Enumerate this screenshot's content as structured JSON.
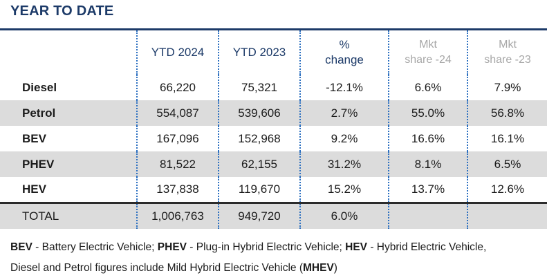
{
  "title": "YEAR TO DATE",
  "headers": {
    "ytd_2024": "YTD 2024",
    "ytd_2023": "YTD 2023",
    "change_line1": "%",
    "change_line2": "change",
    "mkt24_line1": "Mkt",
    "mkt24_line2": "share -24",
    "mkt23_line1": "Mkt",
    "mkt23_line2": "share -23"
  },
  "rows": [
    {
      "label": "Diesel",
      "ytd_2024": "66,220",
      "ytd_2023": "75,321",
      "change": "-12.1%",
      "mkt_24": "6.6%",
      "mkt_23": "7.9%"
    },
    {
      "label": "Petrol",
      "ytd_2024": "554,087",
      "ytd_2023": "539,606",
      "change": "2.7%",
      "mkt_24": "55.0%",
      "mkt_23": "56.8%"
    },
    {
      "label": "BEV",
      "ytd_2024": "167,096",
      "ytd_2023": "152,968",
      "change": "9.2%",
      "mkt_24": "16.6%",
      "mkt_23": "16.1%"
    },
    {
      "label": "PHEV",
      "ytd_2024": "81,522",
      "ytd_2023": "62,155",
      "change": "31.2%",
      "mkt_24": "8.1%",
      "mkt_23": "6.5%"
    },
    {
      "label": "HEV",
      "ytd_2024": "137,838",
      "ytd_2023": "119,670",
      "change": "15.2%",
      "mkt_24": "13.7%",
      "mkt_23": "12.6%"
    }
  ],
  "total": {
    "label": "TOTAL",
    "ytd_2024": "1,006,763",
    "ytd_2023": "949,720",
    "change": "6.0%",
    "mkt_24": "",
    "mkt_23": ""
  },
  "footnote": {
    "bev_abbr": "BEV",
    "bev_text": " - Battery Electric Vehicle; ",
    "phev_abbr": "PHEV",
    "phev_text": " - Plug-in Hybrid Electric Vehicle; ",
    "hev_abbr": "HEV",
    "hev_text": " - Hybrid Electric Vehicle,",
    "line2_text": "Diesel and Petrol figures include Mild Hybrid Electric Vehicle (",
    "mhev_abbr": "MHEV",
    "line2_close": ")"
  },
  "colors": {
    "title": "#1c3a68",
    "header": "#1c3a68",
    "muted_header": "#a7a7a7",
    "row_alt": "#dcdcdc",
    "separator": "#2b6fc0"
  }
}
